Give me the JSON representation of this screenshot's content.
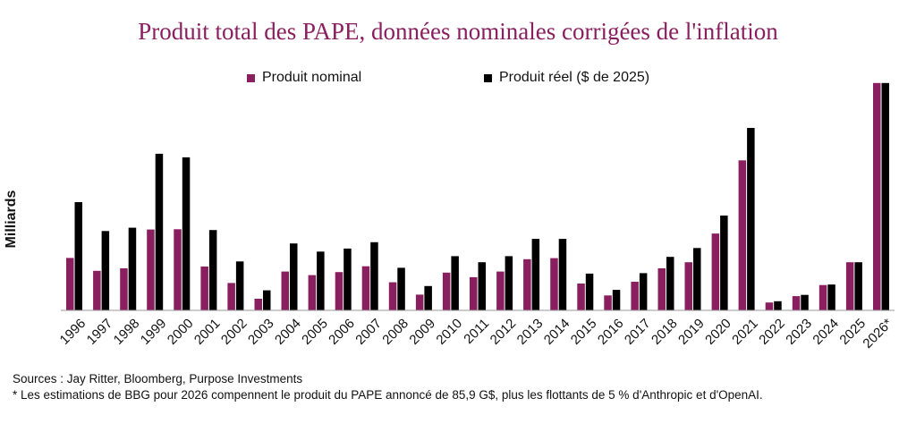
{
  "title": "Produit total des PAPE, données nominales corrigées de l'inflation",
  "legend": {
    "nominal": "Produit nominal",
    "real": "Produit réel ($ de 2025)"
  },
  "colors": {
    "nominal": "#8a1f5f",
    "real": "#000000",
    "title": "#8a1f5f"
  },
  "notes": {
    "sources": "Sources : Jay Ritter, Bloomberg, Purpose Investments",
    "footnote": "* Les estimations de BBG pour 2026 compennent le produit du PAPE annoncé de 85,9 G$, plus les flottants de 5 % d'Anthropic et d'OpenAI."
  },
  "chart_data": {
    "type": "bar",
    "ylabel": "Milliards",
    "ylim": [
      0,
      90
    ],
    "grid": false,
    "legend_position": "top",
    "categories": [
      "1996",
      "1997",
      "1998",
      "1999",
      "2000",
      "2001",
      "2002",
      "2003",
      "2004",
      "2005",
      "2006",
      "2007",
      "2008",
      "2009",
      "2010",
      "2011",
      "2012",
      "2013",
      "2014",
      "2015",
      "2016",
      "2017",
      "2018",
      "2019",
      "2020",
      "2021",
      "2022",
      "2023",
      "2024",
      "2025",
      "2026*"
    ],
    "series": [
      {
        "name": "Produit nominal",
        "values": [
          20.7,
          15.6,
          16.6,
          31.9,
          32.0,
          17.3,
          10.8,
          4.6,
          15.3,
          13.9,
          15.1,
          17.4,
          11.1,
          6.2,
          14.9,
          13.1,
          15.3,
          20.2,
          20.6,
          10.6,
          5.9,
          11.3,
          16.6,
          19.0,
          30.3,
          59.2,
          3.1,
          5.6,
          10.0,
          19.0,
          89.7
        ]
      },
      {
        "name": "Produit réel ($ de 2025)",
        "values": [
          42.7,
          31.3,
          32.6,
          61.8,
          60.4,
          31.7,
          19.3,
          7.9,
          26.4,
          23.2,
          24.4,
          26.9,
          16.8,
          9.6,
          21.4,
          19.0,
          21.4,
          28.2,
          28.2,
          14.5,
          8.1,
          14.7,
          21.1,
          24.6,
          37.4,
          72.0,
          3.6,
          6.1,
          10.2,
          19.0,
          89.7
        ]
      }
    ]
  }
}
